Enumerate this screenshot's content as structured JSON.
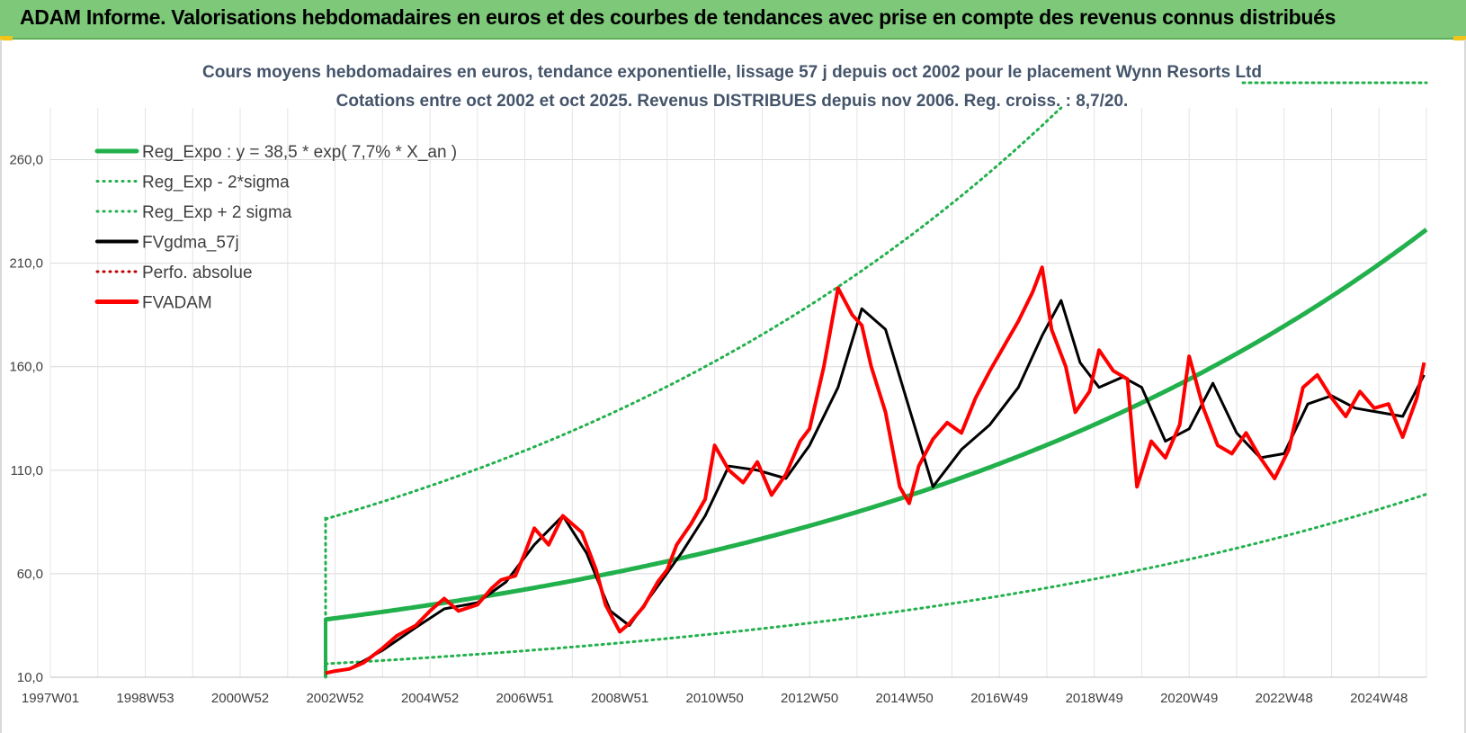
{
  "header": {
    "title": "ADAM Informe. Valorisations hebdomadaires en euros et des courbes de tendances avec prise en compte des revenus connus distribués"
  },
  "colors": {
    "header_bg": "#7ec87a",
    "reg_expo": "#22b04c",
    "fvgdma": "#000000",
    "fvadam": "#ff0000",
    "perfo": "#c00000"
  },
  "chart_data": {
    "type": "line",
    "title_line1": "Cours moyens hebdomadaires en euros, tendance exponentielle, lissage 57 j depuis oct 2002 pour le placement Wynn Resorts Ltd",
    "title_line2": "Cotations entre oct 2002 et oct 2025. Revenus DISTRIBUES depuis nov 2006. Reg. croiss. : 8,7/20.",
    "xlabel": "",
    "ylabel": "",
    "x_range": [
      1997.0,
      2026.0
    ],
    "ylim": [
      10,
      285
    ],
    "y_ticks": [
      10,
      60,
      110,
      160,
      210,
      260
    ],
    "y_tick_labels": [
      "10,0",
      "60,0",
      "110,0",
      "160,0",
      "210,0",
      "260,0"
    ],
    "x_ticks": [
      1997.0,
      1999.0,
      2001.0,
      2003.0,
      2005.0,
      2007.0,
      2009.0,
      2011.0,
      2013.0,
      2015.0,
      2017.0,
      2019.0,
      2021.0,
      2023.0,
      2025.0
    ],
    "x_tick_labels": [
      "1997W01",
      "1998W53",
      "2000W52",
      "2002W52",
      "2004W52",
      "2006W51",
      "2008W51",
      "2010W50",
      "2012W50",
      "2014W50",
      "2016W49",
      "2018W49",
      "2020W49",
      "2022W48",
      "2024W48"
    ],
    "grid": true,
    "legend_position": "top-left",
    "legend": [
      {
        "label": "Reg_Expo : y = 38,5 * exp( 7,7% *  X_an )",
        "color": "#22b04c",
        "style": "solid",
        "width": 5
      },
      {
        "label": "Reg_Exp - 2*sigma",
        "color": "#22b04c",
        "style": "dotted",
        "width": 3
      },
      {
        "label": "Reg_Exp + 2 sigma",
        "color": "#22b04c",
        "style": "dotted",
        "width": 3
      },
      {
        "label": "FVgdma_57j",
        "color": "#000000",
        "style": "solid",
        "width": 4
      },
      {
        "label": "Perfo. absolue",
        "color": "#c00000",
        "style": "dotted",
        "width": 3
      },
      {
        "label": "FVADAM",
        "color": "#ff0000",
        "style": "solid",
        "width": 5
      }
    ],
    "trend": {
      "start_year": 2002.8,
      "end_year": 2026.0,
      "a": 38.5,
      "rate": 0.077,
      "factor_low": 0.435,
      "factor_high": 2.28
    },
    "series": [
      {
        "name": "FVADAM",
        "x": [
          2002.8,
          2003.0,
          2003.3,
          2003.6,
          2004.0,
          2004.3,
          2004.7,
          2005.0,
          2005.3,
          2005.6,
          2006.0,
          2006.3,
          2006.5,
          2006.8,
          2007.0,
          2007.2,
          2007.5,
          2007.8,
          2008.2,
          2008.5,
          2008.7,
          2009.0,
          2009.2,
          2009.5,
          2009.8,
          2010.0,
          2010.2,
          2010.5,
          2010.8,
          2011.0,
          2011.3,
          2011.6,
          2011.9,
          2012.2,
          2012.5,
          2012.8,
          2013.0,
          2013.3,
          2013.6,
          2013.9,
          2014.1,
          2014.3,
          2014.6,
          2014.9,
          2015.1,
          2015.3,
          2015.6,
          2015.9,
          2016.2,
          2016.5,
          2016.8,
          2017.1,
          2017.4,
          2017.7,
          2017.9,
          2018.1,
          2018.4,
          2018.6,
          2018.9,
          2019.1,
          2019.4,
          2019.7,
          2019.9,
          2020.2,
          2020.5,
          2020.8,
          2021.0,
          2021.3,
          2021.6,
          2021.9,
          2022.2,
          2022.5,
          2022.8,
          2023.1,
          2023.4,
          2023.7,
          2024.0,
          2024.3,
          2024.6,
          2024.9,
          2025.2,
          2025.5,
          2025.8,
          2025.95
        ],
        "values": [
          12,
          13,
          14,
          17,
          24,
          30,
          35,
          42,
          48,
          42,
          45,
          53,
          57,
          59,
          70,
          82,
          74,
          88,
          80,
          62,
          45,
          32,
          36,
          44,
          56,
          62,
          74,
          84,
          96,
          122,
          110,
          104,
          114,
          98,
          108,
          124,
          130,
          160,
          198,
          185,
          180,
          160,
          138,
          102,
          94,
          112,
          125,
          133,
          128,
          145,
          158,
          170,
          182,
          196,
          208,
          178,
          160,
          138,
          148,
          168,
          158,
          154,
          102,
          124,
          116,
          132,
          165,
          140,
          122,
          118,
          128,
          116,
          106,
          120,
          150,
          156,
          145,
          136,
          148,
          140,
          142,
          126,
          145,
          162
        ]
      },
      {
        "name": "FVgdma_57j",
        "x": [
          2002.8,
          2003.3,
          2004.0,
          2004.7,
          2005.3,
          2006.0,
          2006.6,
          2007.2,
          2007.8,
          2008.3,
          2008.8,
          2009.2,
          2009.8,
          2010.3,
          2010.8,
          2011.3,
          2011.9,
          2012.5,
          2013.0,
          2013.6,
          2014.1,
          2014.6,
          2015.1,
          2015.6,
          2016.2,
          2016.8,
          2017.4,
          2017.9,
          2018.3,
          2018.7,
          2019.1,
          2019.6,
          2020.0,
          2020.5,
          2021.0,
          2021.5,
          2022.0,
          2022.5,
          2023.0,
          2023.5,
          2024.0,
          2024.5,
          2025.0,
          2025.5,
          2025.95
        ],
        "values": [
          12,
          14,
          23,
          34,
          43,
          46,
          56,
          74,
          88,
          70,
          42,
          35,
          54,
          70,
          88,
          112,
          110,
          106,
          122,
          150,
          188,
          178,
          140,
          102,
          120,
          132,
          150,
          175,
          192,
          162,
          150,
          155,
          150,
          124,
          130,
          152,
          128,
          116,
          118,
          142,
          146,
          140,
          138,
          136,
          156
        ]
      }
    ]
  }
}
